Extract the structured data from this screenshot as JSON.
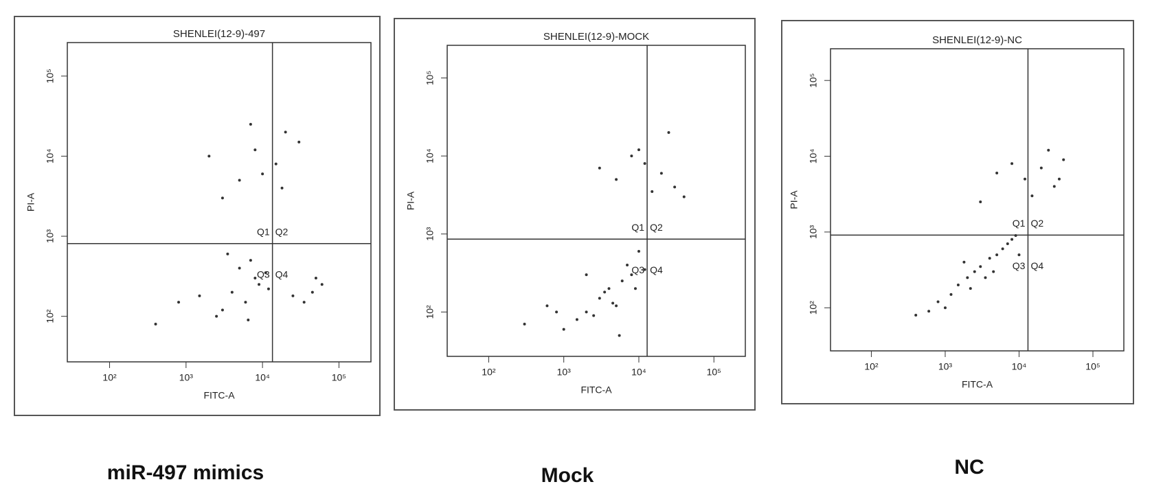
{
  "chart_data": [
    {
      "type": "scatter",
      "title": "SHENLEI(12-9)-497",
      "caption": "miR-497  mimics",
      "x_label": "FITC-A",
      "y_label": "PI-A",
      "log_x": true,
      "log_y": true,
      "color": "#333333",
      "xlim": [
        28,
        262144
      ],
      "ylim": [
        27,
        262144
      ],
      "xticks": [
        {
          "value": 100,
          "label": "10²"
        },
        {
          "value": 1000,
          "label": "10³"
        },
        {
          "value": 10000,
          "label": "10⁴"
        },
        {
          "value": 100000,
          "label": "10⁵"
        }
      ],
      "yticks": [
        {
          "value": 100,
          "label": "10²"
        },
        {
          "value": 1000,
          "label": "10³"
        },
        {
          "value": 10000,
          "label": "10⁴"
        },
        {
          "value": 100000,
          "label": "10⁵"
        }
      ],
      "xgate": 13500,
      "ygate": 810,
      "quadrants": [
        "Q1",
        "Q2",
        "Q3",
        "Q4"
      ],
      "x": [
        4000,
        6000,
        8000,
        3000,
        5000,
        9000,
        2500,
        7000,
        1500,
        11000,
        3500,
        6500,
        800,
        12000,
        400,
        45000,
        60000,
        35000,
        50000,
        25000,
        5000,
        8000,
        15000,
        20000,
        3000,
        10000,
        30000,
        2000,
        7000,
        18000
      ],
      "y": [
        200,
        150,
        300,
        120,
        400,
        250,
        100,
        500,
        180,
        350,
        600,
        90,
        150,
        220,
        80,
        200,
        250,
        150,
        300,
        180,
        5000,
        12000,
        8000,
        20000,
        3000,
        6000,
        15000,
        10000,
        25000,
        4000
      ]
    },
    {
      "type": "scatter",
      "title": "SHENLEI(12-9)-MOCK",
      "caption": "Mock",
      "x_label": "FITC-A",
      "y_label": "PI-A",
      "log_x": true,
      "log_y": true,
      "color": "#333333",
      "xlim": [
        28,
        262144
      ],
      "ylim": [
        27,
        262144
      ],
      "xticks": [
        {
          "value": 100,
          "label": "10²"
        },
        {
          "value": 1000,
          "label": "10³"
        },
        {
          "value": 10000,
          "label": "10⁴"
        },
        {
          "value": 100000,
          "label": "10⁵"
        }
      ],
      "yticks": [
        {
          "value": 100,
          "label": "10²"
        },
        {
          "value": 1000,
          "label": "10³"
        },
        {
          "value": 10000,
          "label": "10⁴"
        },
        {
          "value": 100000,
          "label": "10⁵"
        }
      ],
      "xgate": 12900,
      "ygate": 860,
      "quadrants": [
        "Q1",
        "Q2",
        "Q3",
        "Q4"
      ],
      "x": [
        2000,
        3000,
        4000,
        5000,
        6000,
        1500,
        8000,
        2500,
        1000,
        7000,
        3500,
        600,
        10000,
        300,
        4500,
        9000,
        12000,
        5500,
        2000,
        800,
        5000,
        8000,
        12000,
        20000,
        30000,
        40000,
        3000,
        25000,
        15000,
        10000
      ],
      "y": [
        100,
        150,
        200,
        120,
        250,
        80,
        300,
        90,
        60,
        400,
        180,
        120,
        600,
        70,
        130,
        200,
        350,
        50,
        300,
        100,
        5000,
        10000,
        8000,
        6000,
        4000,
        3000,
        7000,
        20000,
        3500,
        12000
      ]
    },
    {
      "type": "scatter",
      "title": "SHENLEI(12-9)-NC",
      "caption": "NC",
      "x_label": "FITC-A",
      "y_label": "PI-A",
      "log_x": true,
      "log_y": true,
      "color": "#333333",
      "xlim": [
        28,
        262144
      ],
      "ylim": [
        27,
        262144
      ],
      "xticks": [
        {
          "value": 100,
          "label": "10²"
        },
        {
          "value": 1000,
          "label": "10³"
        },
        {
          "value": 10000,
          "label": "10⁴"
        },
        {
          "value": 100000,
          "label": "10⁵"
        }
      ],
      "yticks": [
        {
          "value": 100,
          "label": "10²"
        },
        {
          "value": 1000,
          "label": "10³"
        },
        {
          "value": 10000,
          "label": "10⁴"
        },
        {
          "value": 100000,
          "label": "10⁵"
        }
      ],
      "xgate": 13200,
      "ygate": 910,
      "quadrants": [
        "Q1",
        "Q2",
        "Q3",
        "Q4"
      ],
      "x": [
        800,
        1500,
        2000,
        3000,
        4000,
        5000,
        6000,
        1200,
        2500,
        7000,
        1000,
        600,
        3500,
        8000,
        400,
        10000,
        4500,
        2200,
        1800,
        9000,
        5000,
        8000,
        12000,
        20000,
        30000,
        40000,
        15000,
        35000,
        25000,
        3000
      ],
      "y": [
        120,
        200,
        250,
        350,
        450,
        500,
        600,
        150,
        300,
        700,
        100,
        90,
        250,
        800,
        80,
        500,
        300,
        180,
        400,
        900,
        6000,
        8000,
        5000,
        7000,
        4000,
        9000,
        3000,
        5000,
        12000,
        2500
      ]
    }
  ]
}
